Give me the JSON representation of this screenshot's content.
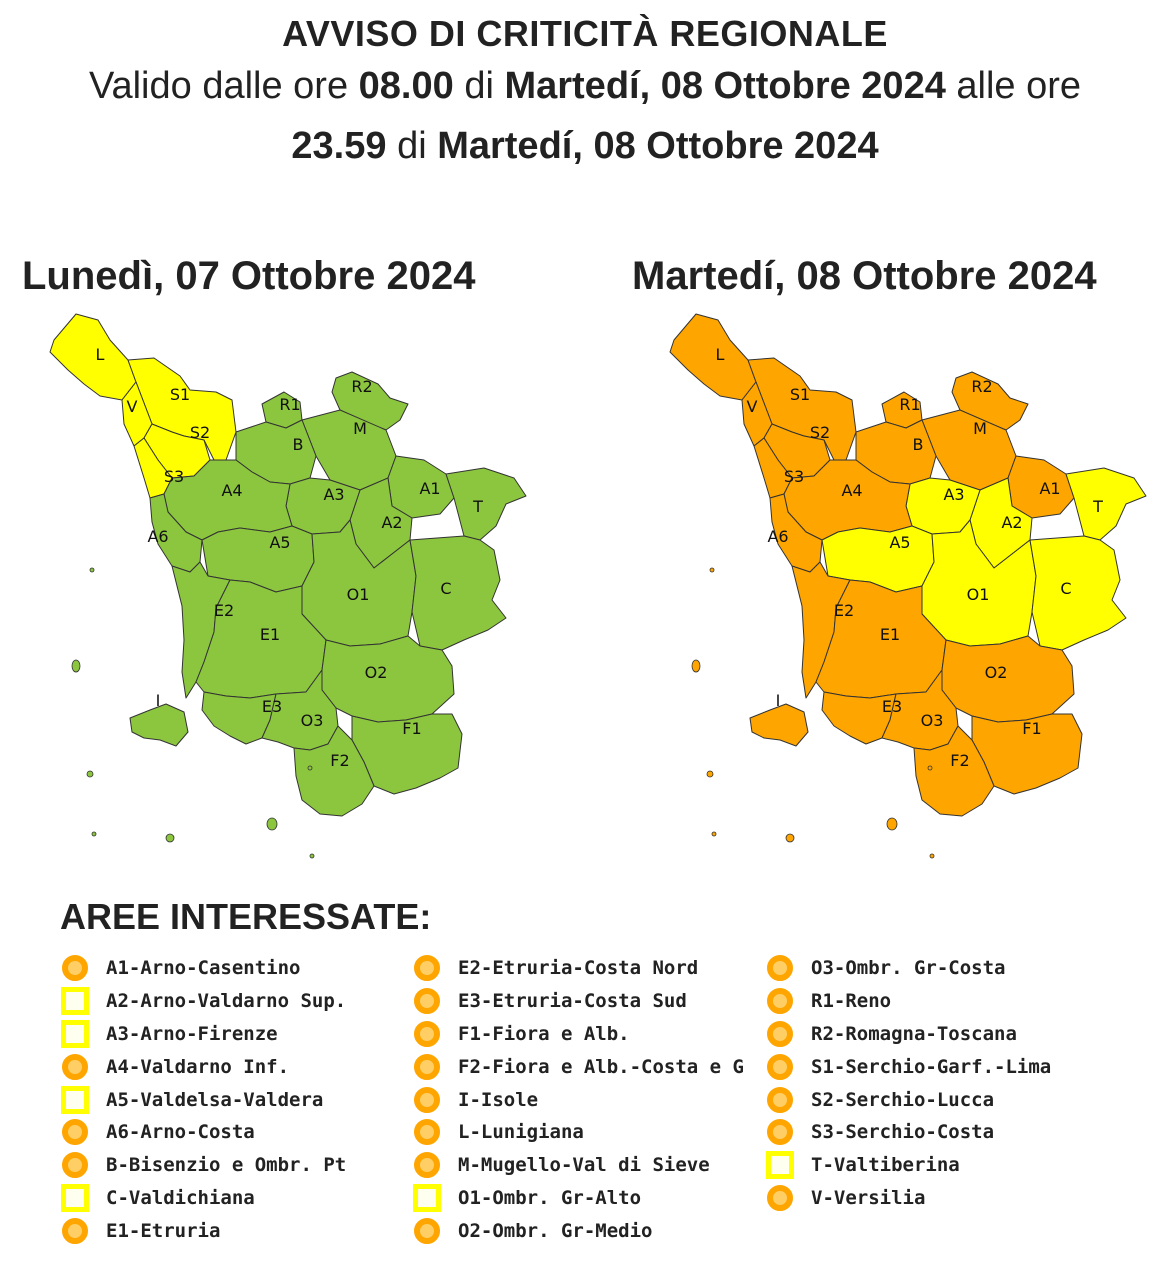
{
  "header": {
    "title": "AVVISO DI CRITICITÀ REGIONALE",
    "line1": {
      "prefix": "Valido dalle ore",
      "start_time": "08.00",
      "di": "di",
      "start_date": "Martedí, 08 Ottobre 2024",
      "until": "alle ore"
    },
    "line2": {
      "end_time": "23.59",
      "di": "di",
      "end_date": "Martedí, 08 Ottobre 2024"
    }
  },
  "maps": {
    "left": {
      "title": "Lunedì, 07 Ottobre 2024",
      "zones": {
        "L": "yellow",
        "S1": "yellow",
        "V": "yellow",
        "S2": "yellow",
        "S3": "yellow",
        "R1": "green",
        "R2": "green",
        "M": "green",
        "B": "green",
        "A1": "green",
        "A2": "green",
        "A3": "green",
        "A4": "green",
        "A5": "green",
        "A6": "green",
        "T": "green",
        "C": "green",
        "O1": "green",
        "O2": "green",
        "O3": "green",
        "E1": "green",
        "E2": "green",
        "E3": "green",
        "F1": "green",
        "F2": "green",
        "I": "green"
      }
    },
    "right": {
      "title": "Martedí, 08 Ottobre 2024",
      "zones": {
        "L": "orange",
        "S1": "orange",
        "V": "orange",
        "S2": "orange",
        "S3": "orange",
        "R1": "orange",
        "R2": "orange",
        "M": "orange",
        "B": "orange",
        "A1": "orange",
        "A2": "yellow",
        "A3": "yellow",
        "A4": "orange",
        "A5": "yellow",
        "A6": "orange",
        "T": "yellow",
        "C": "yellow",
        "O1": "yellow",
        "O2": "orange",
        "O3": "orange",
        "E1": "orange",
        "E2": "orange",
        "E3": "orange",
        "F1": "orange",
        "F2": "orange",
        "I": "orange"
      }
    },
    "level_colors": {
      "green": "#8cc63f",
      "yellow": "#ffff00",
      "orange": "#ffa500"
    }
  },
  "legend": {
    "title": "AREE INTERESSATE:",
    "columns": [
      [
        {
          "label": "A1-Arno-Casentino",
          "level": "orange"
        },
        {
          "label": "A2-Arno-Valdarno Sup.",
          "level": "yellow"
        },
        {
          "label": "A3-Arno-Firenze",
          "level": "yellow"
        },
        {
          "label": "A4-Valdarno Inf.",
          "level": "orange"
        },
        {
          "label": "A5-Valdelsa-Valdera",
          "level": "yellow"
        },
        {
          "label": "A6-Arno-Costa",
          "level": "orange"
        },
        {
          "label": "B-Bisenzio e Ombr. Pt",
          "level": "orange"
        },
        {
          "label": "C-Valdichiana",
          "level": "yellow"
        },
        {
          "label": "E1-Etruria",
          "level": "orange"
        }
      ],
      [
        {
          "label": "E2-Etruria-Costa Nord",
          "level": "orange"
        },
        {
          "label": "E3-Etruria-Costa Sud",
          "level": "orange"
        },
        {
          "label": "F1-Fiora e Alb.",
          "level": "orange"
        },
        {
          "label": "F2-Fiora e Alb.-Costa e G",
          "level": "orange"
        },
        {
          "label": "I-Isole",
          "level": "orange"
        },
        {
          "label": "L-Lunigiana",
          "level": "orange"
        },
        {
          "label": "M-Mugello-Val di Sieve",
          "level": "orange"
        },
        {
          "label": "O1-Ombr. Gr-Alto",
          "level": "yellow"
        },
        {
          "label": "O2-Ombr. Gr-Medio",
          "level": "orange"
        }
      ],
      [
        {
          "label": "O3-Ombr. Gr-Costa",
          "level": "orange"
        },
        {
          "label": "R1-Reno",
          "level": "orange"
        },
        {
          "label": "R2-Romagna-Toscana",
          "level": "orange"
        },
        {
          "label": "S1-Serchio-Garf.-Lima",
          "level": "orange"
        },
        {
          "label": "S2-Serchio-Lucca",
          "level": "orange"
        },
        {
          "label": "S3-Serchio-Costa",
          "level": "orange"
        },
        {
          "label": "T-Valtiberina",
          "level": "yellow"
        },
        {
          "label": "V-Versilia",
          "level": "orange"
        }
      ]
    ]
  }
}
